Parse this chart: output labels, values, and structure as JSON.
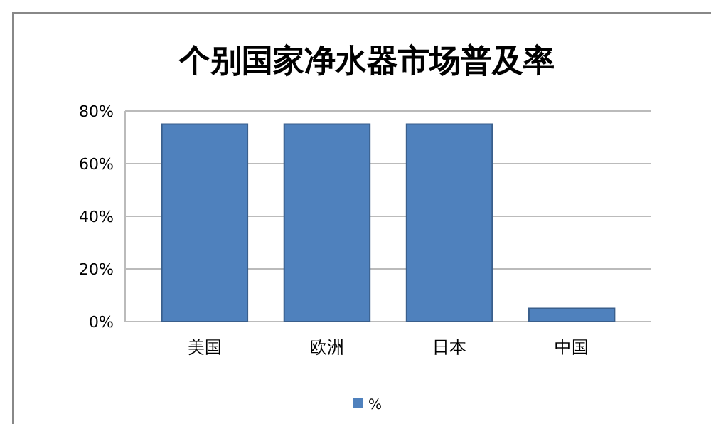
{
  "chart_data": {
    "type": "bar",
    "title": "个别国家净水器市场普及率",
    "categories": [
      "美国",
      "欧洲",
      "日本",
      "中国"
    ],
    "series": [
      {
        "name": "%",
        "color": "#4f81bd",
        "values": [
          75,
          75,
          75,
          5
        ]
      }
    ],
    "ylim": [
      0,
      80
    ],
    "yticks": [
      {
        "value": 0,
        "label": "0%"
      },
      {
        "value": 20,
        "label": "20%"
      },
      {
        "value": 40,
        "label": "40%"
      },
      {
        "value": 60,
        "label": "60%"
      },
      {
        "value": 80,
        "label": "80%"
      }
    ],
    "grid": "y",
    "legend": "bottom"
  }
}
